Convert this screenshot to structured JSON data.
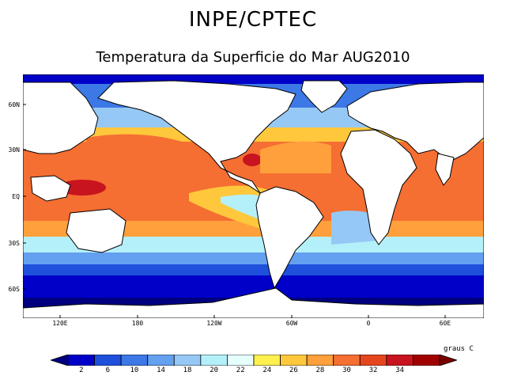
{
  "header": {
    "title": "INPE/CPTEC",
    "subtitle": "Temperatura da Superficie do Mar AUG2010"
  },
  "map": {
    "projection": "cylindrical-equidistant",
    "lat_labels": [
      "60N",
      "30N",
      "EQ",
      "30S",
      "60S"
    ],
    "lon_labels": [
      "120E",
      "180",
      "120W",
      "60W",
      "0",
      "60E"
    ],
    "land_color": "#ffffff",
    "zones": [
      {
        "name": "north-polar-band",
        "value": "<2"
      },
      {
        "name": "equatorial-pacific",
        "value": "28-30"
      },
      {
        "name": "west-pacific-warm-pool",
        "value": "30-32"
      },
      {
        "name": "gulf-of-mexico",
        "value": "30-32"
      },
      {
        "name": "red-sea",
        "value": "30-32"
      },
      {
        "name": "southern-ocean",
        "value": "<2"
      }
    ]
  },
  "colorbar": {
    "units": "graus C",
    "ticks": [
      "2",
      "6",
      "10",
      "14",
      "18",
      "20",
      "22",
      "24",
      "26",
      "28",
      "30",
      "32",
      "34"
    ],
    "colors": [
      "#00007f",
      "#0000c8",
      "#1e50dc",
      "#3c78e6",
      "#64a0f0",
      "#96c8f5",
      "#b4f0fa",
      "#e6ffff",
      "#fff050",
      "#ffc83c",
      "#ffa03c",
      "#f56e32",
      "#e6461e",
      "#c8141e",
      "#a00000",
      "#7a0000"
    ]
  }
}
